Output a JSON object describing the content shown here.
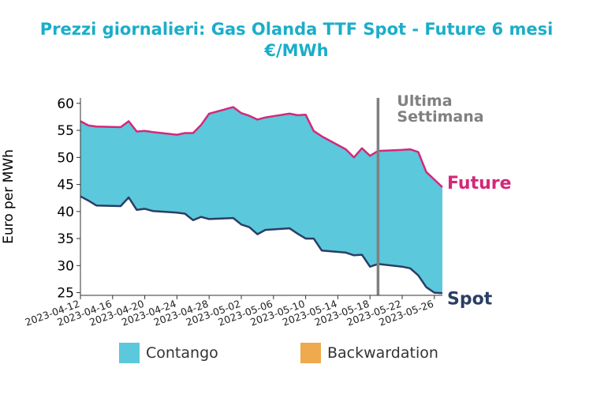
{
  "colors": {
    "title": "#1aaec9",
    "contango": "#5bc8dc",
    "backwardation": "#eeaa4c",
    "future_line": "#d4287a",
    "spot_line": "#2b3e63",
    "marker_line": "#808080",
    "marker_text": "#808080",
    "axis": "#333333"
  },
  "chart_data": {
    "type": "area",
    "title": "Prezzi giornalieri: Gas Olanda TTF Spot - Future 6 mesi",
    "subtitle": "€/MWh",
    "ylabel": "Euro per MWh",
    "xlabel": "",
    "ylim": [
      24.5,
      61
    ],
    "yticks": [
      25,
      30,
      35,
      40,
      45,
      50,
      55,
      60
    ],
    "x_range": [
      "2023-04-12",
      "2023-05-27"
    ],
    "xticks": [
      "2023-04-12",
      "2023-04-16",
      "2023-04-20",
      "2023-04-24",
      "2023-04-28",
      "2023-05-02",
      "2023-05-06",
      "2023-05-10",
      "2023-05-14",
      "2023-05-18",
      "2023-05-22",
      "2023-05-26"
    ],
    "grid": false,
    "legend_position": "bottom",
    "legend": [
      {
        "name": "Contango",
        "color": "#5bc8dc"
      },
      {
        "name": "Backwardation",
        "color": "#eeaa4c"
      }
    ],
    "line_labels": {
      "future": "Future",
      "spot": "Spot"
    },
    "annotation": {
      "date": "2023-05-19",
      "lines": [
        "Ultima",
        "Settimana"
      ]
    },
    "x": [
      "2023-04-12",
      "2023-04-13",
      "2023-04-14",
      "2023-04-17",
      "2023-04-18",
      "2023-04-19",
      "2023-04-20",
      "2023-04-21",
      "2023-04-24",
      "2023-04-25",
      "2023-04-26",
      "2023-04-27",
      "2023-04-28",
      "2023-05-01",
      "2023-05-02",
      "2023-05-03",
      "2023-05-04",
      "2023-05-05",
      "2023-05-08",
      "2023-05-09",
      "2023-05-10",
      "2023-05-11",
      "2023-05-12",
      "2023-05-15",
      "2023-05-16",
      "2023-05-17",
      "2023-05-18",
      "2023-05-19",
      "2023-05-22",
      "2023-05-23",
      "2023-05-24",
      "2023-05-25",
      "2023-05-26",
      "2023-05-27"
    ],
    "series": [
      {
        "name": "Future",
        "values": [
          56.7,
          55.9,
          55.7,
          55.6,
          56.7,
          54.8,
          54.9,
          54.7,
          54.2,
          54.5,
          54.5,
          56.0,
          58.1,
          59.3,
          58.2,
          57.7,
          57.0,
          57.4,
          58.1,
          57.8,
          57.9,
          54.9,
          53.9,
          51.5,
          50.0,
          51.7,
          50.3,
          51.2,
          51.4,
          51.5,
          51.0,
          47.3,
          45.9,
          44.5
        ]
      },
      {
        "name": "Spot",
        "values": [
          42.8,
          42.0,
          41.1,
          41.0,
          42.6,
          40.3,
          40.5,
          40.1,
          39.8,
          39.6,
          38.4,
          39.0,
          38.6,
          38.8,
          37.6,
          37.1,
          35.8,
          36.6,
          36.9,
          35.9,
          35.0,
          35.0,
          32.8,
          32.4,
          31.9,
          32.0,
          29.8,
          30.3,
          29.8,
          29.5,
          28.2,
          26.0,
          25.0,
          24.9
        ]
      }
    ]
  }
}
